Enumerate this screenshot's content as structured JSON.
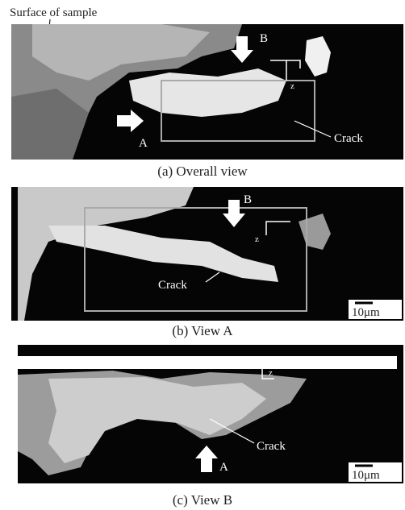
{
  "header": {
    "label": "Surface of sample"
  },
  "panels": [
    {
      "caption": "(a) Overall view",
      "labels": {
        "arrow_b": "B",
        "axis": "z",
        "arrow_a": "A",
        "crack": "Crack"
      }
    },
    {
      "caption": "(b) View A",
      "labels": {
        "arrow_b": "B",
        "axis": "z",
        "crack": "Crack",
        "scale": "10μm"
      }
    },
    {
      "caption": "(c) View B",
      "labels": {
        "axis": "z",
        "crack": "Crack",
        "arrow_a": "A",
        "scale": "10μm"
      }
    }
  ]
}
